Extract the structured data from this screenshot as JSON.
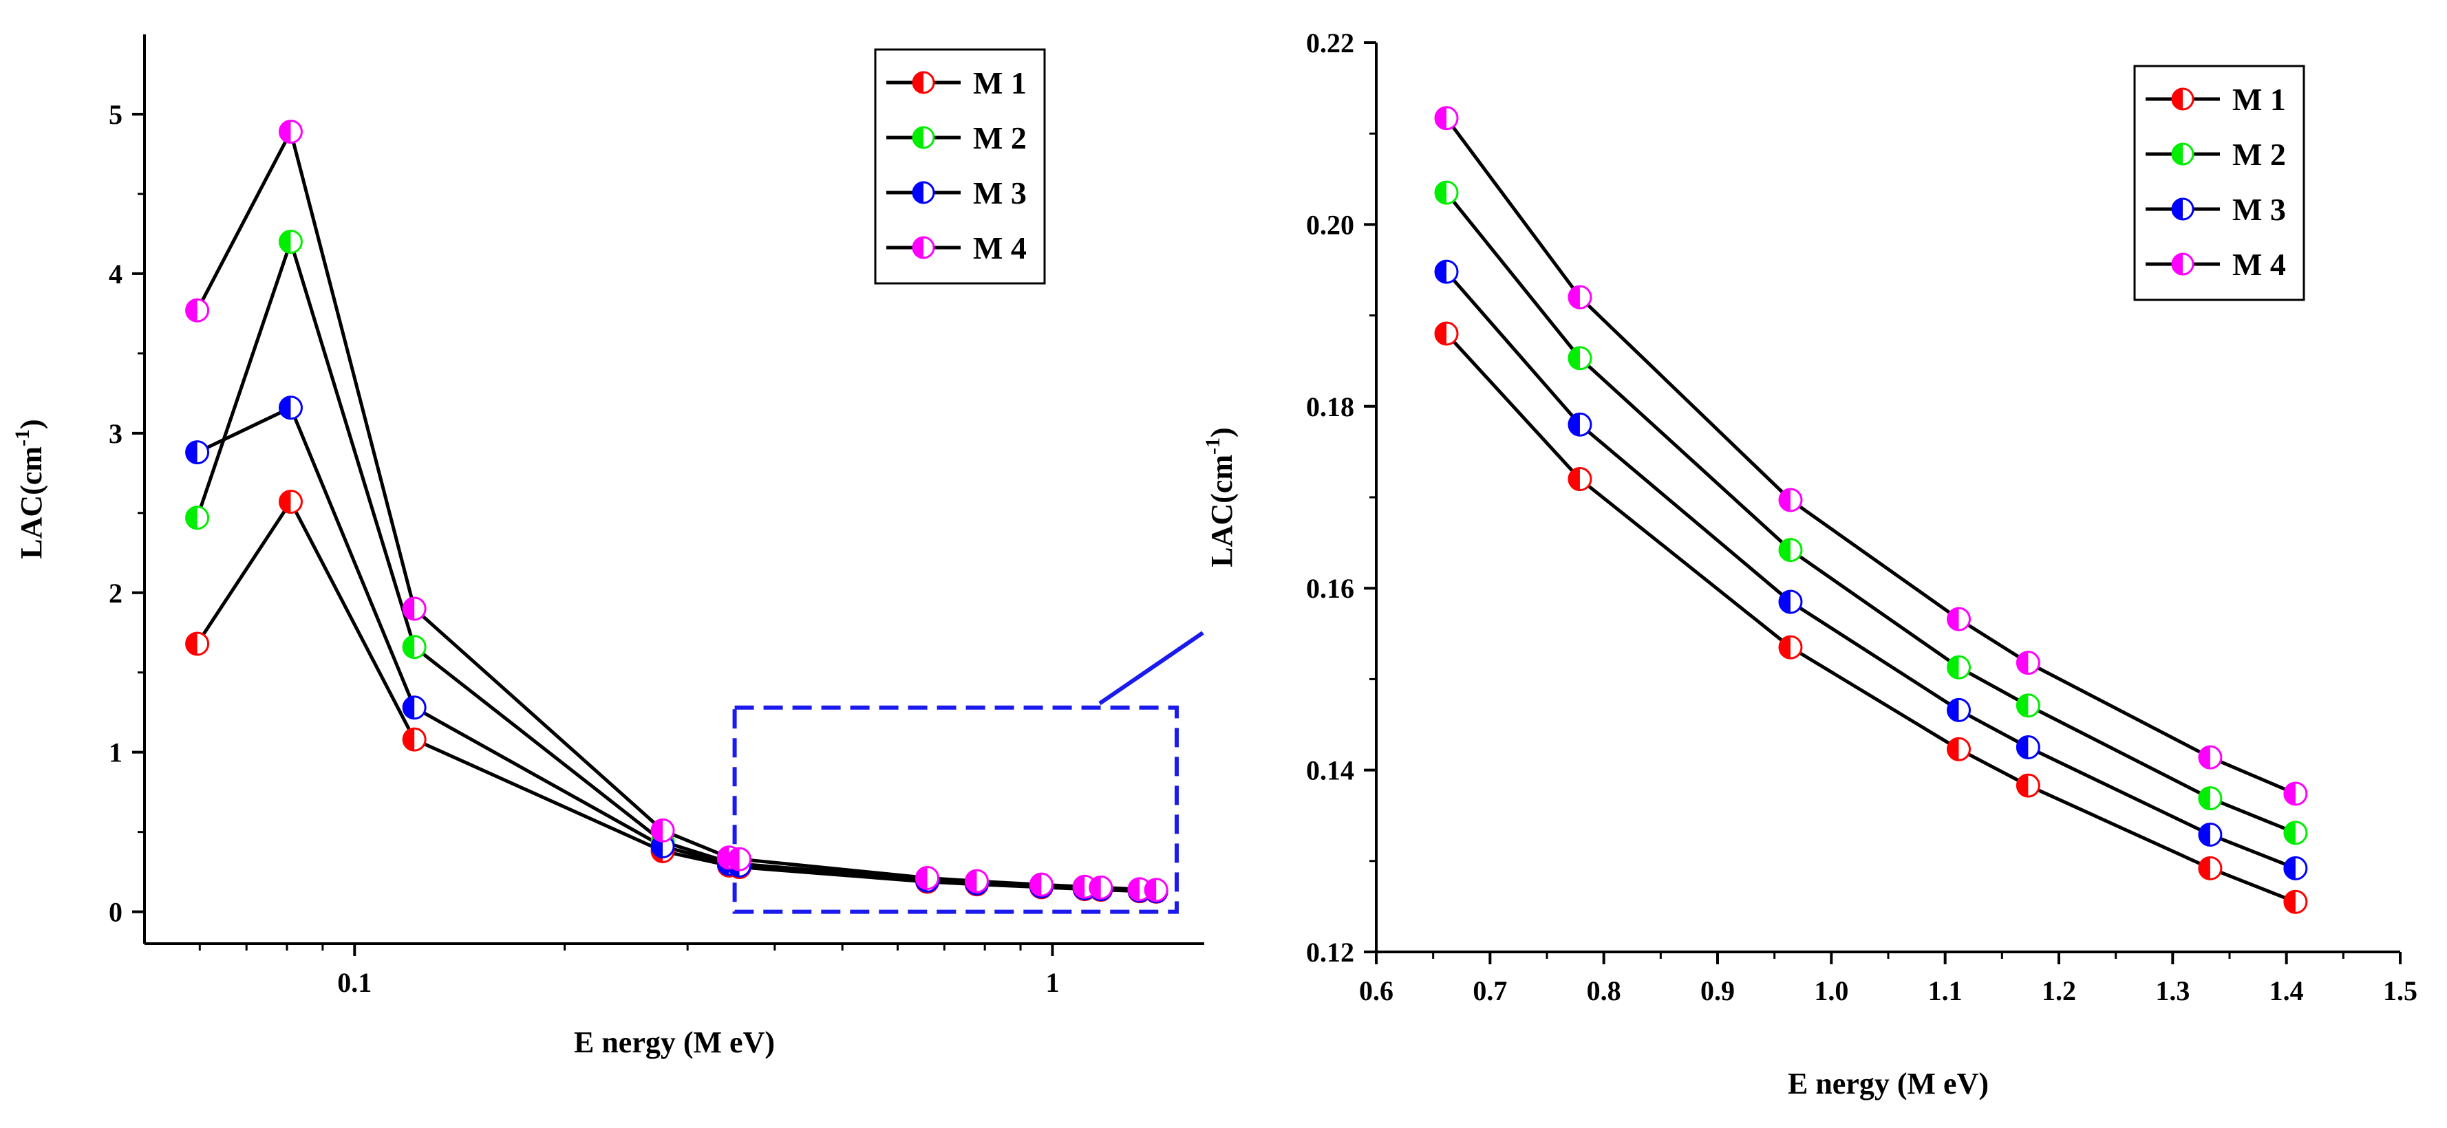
{
  "chart_data": [
    {
      "type": "line",
      "x_scale": "log",
      "xlabel": "E nergy (M eV)",
      "ylabel": "LAC(cm",
      "ylabel_superscript": "-1",
      "ylabel_suffix": ")",
      "xlim": [
        0.05,
        1.65
      ],
      "ylim": [
        -0.2,
        5.5
      ],
      "x_ticks": [
        0.1,
        1
      ],
      "x_tick_labels": [
        "0.1",
        "1"
      ],
      "y_ticks": [
        0,
        1,
        2,
        3,
        4,
        5
      ],
      "y_tick_labels": [
        "0",
        "1",
        "2",
        "3",
        "4",
        "5"
      ],
      "legend_position": "top-right",
      "x": [
        0.0595,
        0.081,
        0.1218,
        0.2764,
        0.344,
        0.356,
        0.6617,
        0.779,
        0.9641,
        1.112,
        1.173,
        1.333,
        1.408
      ],
      "series": [
        {
          "name": "M 1",
          "color": "#ff0000",
          "values": [
            1.68,
            2.57,
            1.08,
            0.38,
            0.29,
            0.28,
            0.188,
            0.172,
            0.154,
            0.142,
            0.138,
            0.129,
            0.126
          ]
        },
        {
          "name": "M 2",
          "color": "#00ee00",
          "values": [
            2.47,
            4.2,
            1.66,
            0.44,
            0.31,
            0.3,
            0.204,
            0.185,
            0.164,
            0.151,
            0.147,
            0.137,
            0.133
          ]
        },
        {
          "name": "M 3",
          "color": "#0000ff",
          "values": [
            2.88,
            3.16,
            1.28,
            0.41,
            0.3,
            0.29,
            0.195,
            0.178,
            0.159,
            0.147,
            0.142,
            0.133,
            0.129
          ]
        },
        {
          "name": "M 4",
          "color": "#ff00ff",
          "values": [
            3.77,
            4.89,
            1.9,
            0.51,
            0.34,
            0.33,
            0.212,
            0.192,
            0.17,
            0.157,
            0.152,
            0.141,
            0.137
          ]
        }
      ],
      "zoom_box": {
        "x_range": [
          0.32,
          1.65
        ],
        "y_range": [
          0,
          1.28
        ],
        "color": "#1a1aee"
      }
    },
    {
      "type": "line",
      "xlabel": "E nergy (M eV)",
      "ylabel": "LAC(cm",
      "ylabel_superscript": "-1",
      "ylabel_suffix": ")",
      "xlim": [
        0.6,
        1.5
      ],
      "ylim": [
        0.12,
        0.22
      ],
      "x_ticks": [
        0.6,
        0.7,
        0.8,
        0.9,
        1.0,
        1.1,
        1.2,
        1.3,
        1.4,
        1.5
      ],
      "x_tick_labels": [
        "0.6",
        "0.7",
        "0.8",
        "0.9",
        "1.0",
        "1.1",
        "1.2",
        "1.3",
        "1.4",
        "1.5"
      ],
      "y_ticks": [
        0.12,
        0.14,
        0.16,
        0.18,
        0.2,
        0.22
      ],
      "y_tick_labels": [
        "0.12",
        "0.14",
        "0.16",
        "0.18",
        "0.20",
        "0.22"
      ],
      "legend_position": "top-right",
      "x": [
        0.6617,
        0.779,
        0.9641,
        1.112,
        1.173,
        1.333,
        1.408
      ],
      "series": [
        {
          "name": "M 1",
          "color": "#ff0000",
          "values": [
            0.188,
            0.172,
            0.1535,
            0.1423,
            0.1383,
            0.1292,
            0.1255
          ]
        },
        {
          "name": "M 2",
          "color": "#00ee00",
          "values": [
            0.2035,
            0.1853,
            0.1642,
            0.1513,
            0.1471,
            0.1369,
            0.1331
          ]
        },
        {
          "name": "M 3",
          "color": "#0000ff",
          "values": [
            0.1948,
            0.178,
            0.1585,
            0.1466,
            0.1425,
            0.1329,
            0.1292
          ]
        },
        {
          "name": "M 4",
          "color": "#ff00ff",
          "values": [
            0.2117,
            0.192,
            0.1697,
            0.1566,
            0.1518,
            0.1414,
            0.1374
          ]
        }
      ]
    }
  ]
}
